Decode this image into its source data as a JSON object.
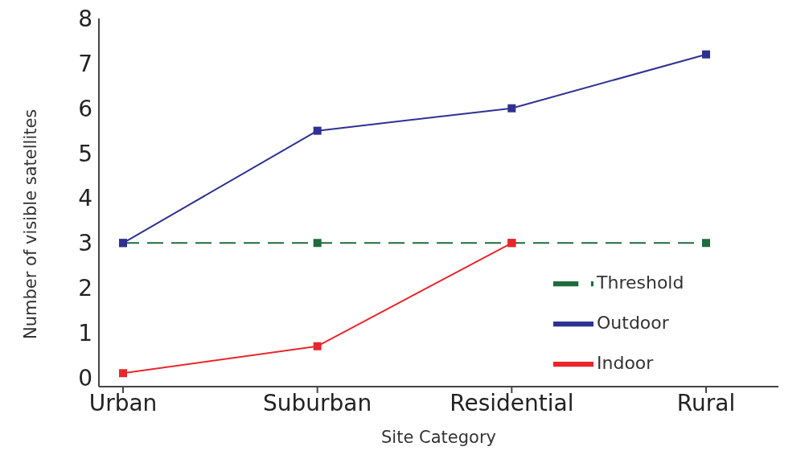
{
  "chart_data": {
    "type": "line",
    "xlabel": "Site Category",
    "ylabel": "Number of visible satellites",
    "categories": [
      "Urban",
      "Suburban",
      "Residential",
      "Rural"
    ],
    "series": [
      {
        "name": "Threshold",
        "color": "#1e6b3c",
        "values": [
          3,
          3,
          3,
          3
        ],
        "line_style": "dashed"
      },
      {
        "name": "Outdoor",
        "color": "#2e3192",
        "values": [
          3,
          5.5,
          6,
          7.2
        ],
        "line_style": "solid"
      },
      {
        "name": "Indoor",
        "color": "#e8262b",
        "values": [
          0.1,
          0.7,
          3,
          null
        ],
        "line_style": "solid"
      }
    ],
    "ylim": [
      -0.2,
      8
    ],
    "yticks": [
      0,
      1,
      2,
      3,
      4,
      5,
      6,
      7,
      8
    ],
    "grid": false,
    "legend": "bottom right",
    "marker": "square"
  }
}
